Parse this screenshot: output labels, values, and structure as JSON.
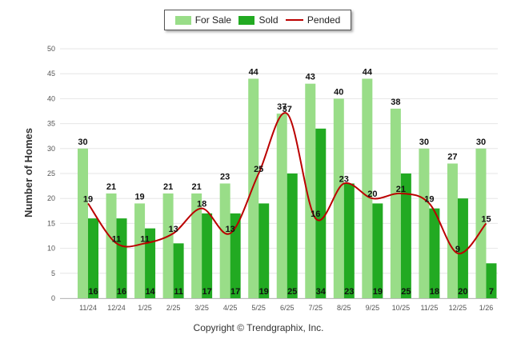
{
  "chart_data": {
    "type": "bar",
    "title": "",
    "xlabel": "",
    "ylabel": "Number of Homes",
    "ylim": [
      0,
      50
    ],
    "yticks": [
      0,
      5,
      10,
      15,
      20,
      25,
      30,
      35,
      40,
      45,
      50
    ],
    "categories": [
      "11/24",
      "12/24",
      "1/25",
      "2/25",
      "3/25",
      "4/25",
      "5/25",
      "6/25",
      "7/25",
      "8/25",
      "9/25",
      "10/25",
      "11/25",
      "12/25",
      "1/26"
    ],
    "series": [
      {
        "name": "For Sale",
        "kind": "bar",
        "color": "#99dd88",
        "values": [
          30,
          21,
          19,
          21,
          21,
          23,
          44,
          37,
          43,
          40,
          44,
          38,
          30,
          27,
          30
        ]
      },
      {
        "name": "Sold",
        "kind": "bar",
        "color": "#22aa22",
        "values": [
          16,
          16,
          14,
          11,
          17,
          17,
          19,
          25,
          34,
          23,
          19,
          25,
          18,
          20,
          7
        ]
      },
      {
        "name": "Pended",
        "kind": "line",
        "color": "#bb0000",
        "values": [
          19,
          11,
          11,
          13,
          18,
          13,
          25,
          37,
          16,
          23,
          20,
          21,
          19,
          9,
          15
        ]
      }
    ],
    "legend": "top-center",
    "grid": true
  },
  "footer": {
    "copyright": "Copyright © Trendgraphix, Inc."
  }
}
